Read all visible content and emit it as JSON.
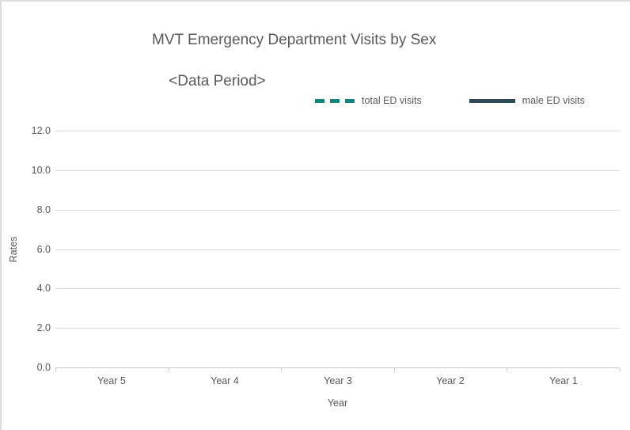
{
  "header": {
    "title_line1": "MVT Emergency Department Visits by Sex",
    "title_line2": "<Data Period>"
  },
  "legend": {
    "entries": [
      {
        "label": "total ED visits",
        "color": "#11857B",
        "style": "dashed"
      },
      {
        "label": "male ED visits",
        "color": "#2F4A57",
        "style": "solid"
      }
    ]
  },
  "colors": {
    "text": "#595959",
    "gridline": "#d9d9d9",
    "axisline": "#c6c6c6",
    "total_series": "#11857B",
    "male_series": "#2F4A57"
  },
  "chart_data": {
    "type": "line",
    "title": "MVT Emergency Department Visits by Sex <Data Period>",
    "categories": [
      "Year 5",
      "Year 4",
      "Year 3",
      "Year 2",
      "Year 1"
    ],
    "series": [
      {
        "name": "total ED visits",
        "color": "#11857B",
        "style": "dashed",
        "values": []
      },
      {
        "name": "male ED visits",
        "color": "#2F4A57",
        "style": "solid",
        "values": []
      }
    ],
    "xlabel": "Year",
    "ylabel": "Rates",
    "ylim": [
      0,
      12
    ],
    "yticks": [
      0,
      2,
      4,
      6,
      8,
      10,
      12
    ],
    "ytick_labels": [
      "0.0",
      "2.0",
      "4.0",
      "6.0",
      "8.0",
      "10.0",
      "12.0"
    ],
    "grid": true,
    "legend_position": "top",
    "note": "plot area is empty - no data points rendered"
  }
}
